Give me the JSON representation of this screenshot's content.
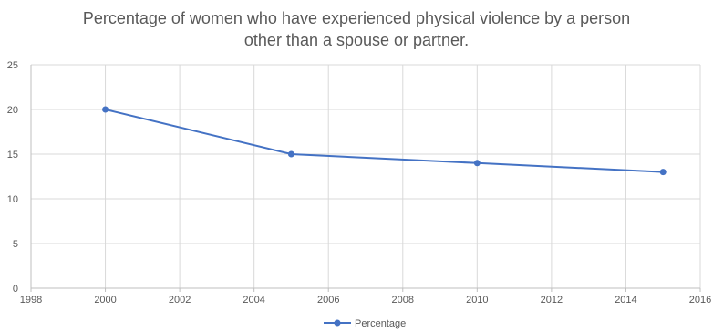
{
  "chart_data": {
    "type": "line",
    "title_line1": "Percentage of women who have experienced physical violence by a person",
    "title_line2": "other than a spouse or partner.",
    "xlabel": "",
    "ylabel": "",
    "xlim": [
      1998,
      2016
    ],
    "ylim": [
      0,
      25
    ],
    "x_ticks": [
      1998,
      2000,
      2002,
      2004,
      2006,
      2008,
      2010,
      2012,
      2014,
      2016
    ],
    "y_ticks": [
      0,
      5,
      10,
      15,
      20,
      25
    ],
    "grid": true,
    "legend_position": "bottom",
    "series": [
      {
        "name": "Percentage",
        "color": "#4472C4",
        "points": [
          {
            "x": 2000,
            "y": 20
          },
          {
            "x": 2005,
            "y": 15
          },
          {
            "x": 2010,
            "y": 14
          },
          {
            "x": 2015,
            "y": 13
          }
        ]
      }
    ]
  }
}
